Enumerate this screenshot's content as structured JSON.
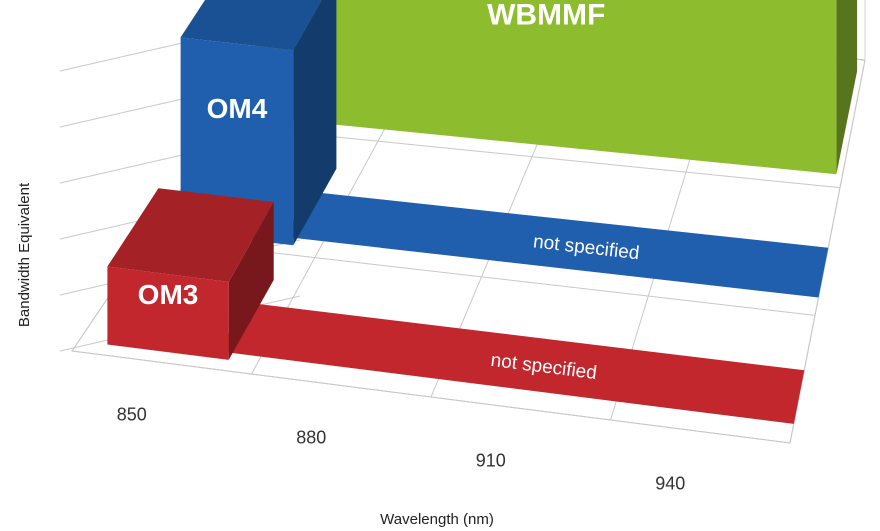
{
  "chart_data": {
    "type": "bar",
    "style": "3d",
    "title": "",
    "xlabel": "Wavelength (nm)",
    "ylabel": "Bandwidth Equivalent",
    "x_ticks": [
      "850",
      "880",
      "910",
      "940"
    ],
    "grid": true,
    "series": [
      {
        "name": "OM3",
        "color": "#c1272d",
        "x": [
          850
        ],
        "values": [
          1.0
        ],
        "band_label": "not specified"
      },
      {
        "name": "OM4",
        "color": "#1f5fae",
        "x": [
          850
        ],
        "values": [
          2.5
        ],
        "band_label": "not specified"
      },
      {
        "name": "WBMMF",
        "color": "#8dbd2e",
        "x": [
          850,
          880,
          910,
          940
        ],
        "values": [
          2.5,
          2.5,
          2.5,
          2.5
        ],
        "band_label": ""
      }
    ]
  }
}
